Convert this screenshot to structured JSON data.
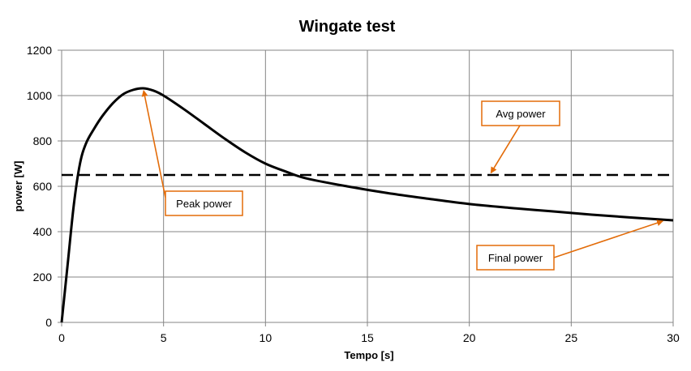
{
  "chart_data": {
    "type": "line",
    "title": "Wingate test",
    "xlabel": "Tempo [s]",
    "ylabel": "power [W]",
    "xlim": [
      0,
      30
    ],
    "ylim": [
      0,
      1200
    ],
    "xticks": [
      0,
      5,
      10,
      15,
      20,
      25,
      30
    ],
    "yticks": [
      0,
      200,
      400,
      600,
      800,
      1000,
      1200
    ],
    "grid": true,
    "legend": "none",
    "series": [
      {
        "style": "solid",
        "color": "#000000",
        "x": [
          0,
          0.3,
          0.6,
          0.9,
          1.2,
          1.6,
          2.0,
          2.5,
          3.0,
          3.5,
          4.0,
          4.5,
          5.0,
          6.0,
          7.0,
          8.0,
          9.0,
          10.0,
          11.0,
          12.0,
          14.0,
          16.0,
          18.0,
          20.0,
          22.0,
          24.0,
          26.0,
          28.0,
          30.0
        ],
        "y": [
          0,
          260,
          520,
          700,
          790,
          855,
          910,
          965,
          1005,
          1025,
          1032,
          1022,
          1000,
          940,
          875,
          810,
          750,
          700,
          665,
          635,
          600,
          570,
          545,
          522,
          505,
          490,
          475,
          462,
          450
        ]
      },
      {
        "style": "dashed",
        "color": "#000000",
        "x": [
          0,
          30
        ],
        "y": [
          650,
          650
        ]
      }
    ],
    "annotations": [
      {
        "text": "Peak power",
        "target": [
          4.0,
          1032
        ]
      },
      {
        "text": "Avg power",
        "target": [
          21.0,
          650
        ]
      },
      {
        "text": "Final power",
        "target": [
          29.6,
          450
        ]
      }
    ],
    "annotation_color": "#e36c09"
  }
}
